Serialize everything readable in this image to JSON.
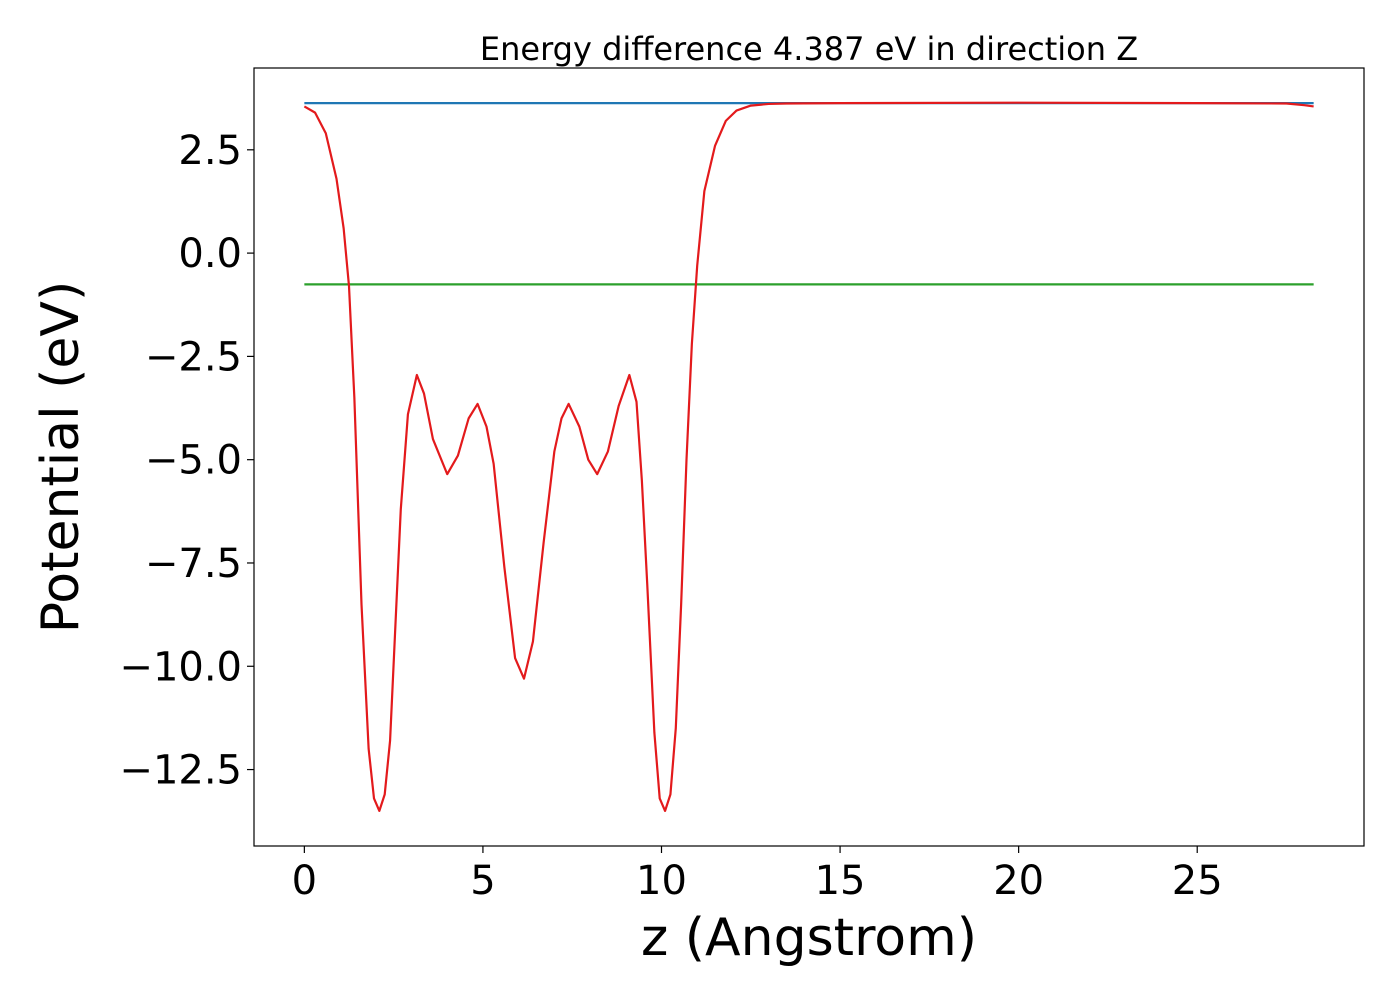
{
  "chart_data": {
    "type": "line",
    "title": "Energy difference 4.387 eV in direction Z",
    "xlabel": "z (Angstrom)",
    "ylabel": "Potential (eV)",
    "xlim": [
      -1.41,
      29.67
    ],
    "ylim": [
      -14.35,
      4.48
    ],
    "xticks": [
      0,
      5,
      10,
      15,
      20,
      25
    ],
    "yticks": [
      {
        "value": -12.5,
        "label": "−12.5"
      },
      {
        "value": -10,
        "label": "−10.0"
      },
      {
        "value": -7.5,
        "label": "−7.5"
      },
      {
        "value": -5,
        "label": "−5.0"
      },
      {
        "value": -2.5,
        "label": "−2.5"
      },
      {
        "value": 0,
        "label": "0.0"
      },
      2.5
    ],
    "series": [
      {
        "color": "#1f77b4",
        "x": [
          0,
          28.26
        ],
        "values": [
          3.63,
          3.63
        ]
      },
      {
        "color": "#2ca02c",
        "x": [
          0,
          28.26
        ],
        "values": [
          -0.757,
          -0.757
        ]
      },
      {
        "color": "#e31a1c",
        "x": [
          0,
          0.3,
          0.6,
          0.9,
          1.1,
          1.25,
          1.4,
          1.6,
          1.8,
          1.95,
          2.1,
          2.25,
          2.4,
          2.55,
          2.7,
          2.9,
          3.15,
          3.35,
          3.6,
          4.0,
          4.3,
          4.6,
          4.85,
          5.1,
          5.3,
          5.6,
          5.9,
          6.15,
          6.4,
          6.7,
          7.0,
          7.2,
          7.4,
          7.7,
          7.95,
          8.2,
          8.5,
          8.8,
          9.1,
          9.3,
          9.45,
          9.6,
          9.8,
          9.95,
          10.1,
          10.25,
          10.4,
          10.55,
          10.7,
          10.85,
          11.0,
          11.2,
          11.5,
          11.8,
          12.1,
          12.5,
          13.0,
          13.5,
          15,
          20,
          25,
          27.5,
          28.0,
          28.26
        ],
        "values": [
          3.55,
          3.4,
          2.9,
          1.8,
          0.6,
          -0.8,
          -3.5,
          -8.5,
          -12.0,
          -13.2,
          -13.5,
          -13.1,
          -11.8,
          -9.0,
          -6.2,
          -3.9,
          -2.95,
          -3.4,
          -4.5,
          -5.35,
          -4.9,
          -4.0,
          -3.65,
          -4.2,
          -5.1,
          -7.6,
          -9.8,
          -10.3,
          -9.4,
          -7.0,
          -4.8,
          -4.0,
          -3.65,
          -4.2,
          -5.0,
          -5.35,
          -4.8,
          -3.7,
          -2.95,
          -3.6,
          -5.5,
          -8.0,
          -11.6,
          -13.2,
          -13.5,
          -13.1,
          -11.5,
          -8.5,
          -5.0,
          -2.2,
          -0.3,
          1.5,
          2.6,
          3.2,
          3.45,
          3.57,
          3.61,
          3.62,
          3.63,
          3.64,
          3.63,
          3.62,
          3.58,
          3.55
        ]
      }
    ]
  }
}
